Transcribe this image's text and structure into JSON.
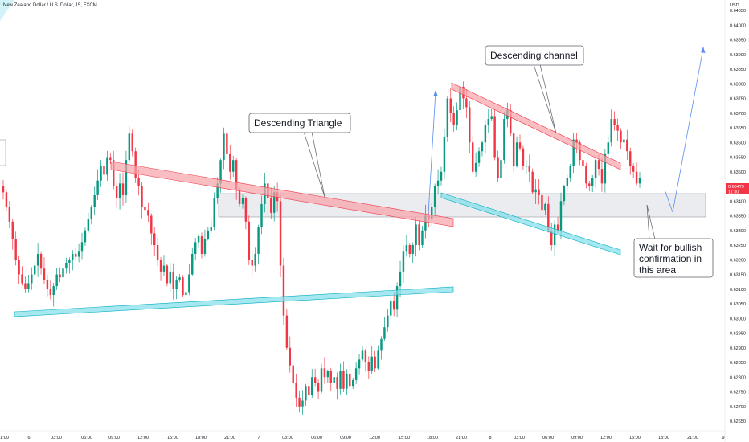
{
  "chart_data": {
    "type": "candlestick",
    "title": "New Zealand Dollar / U.S. Dollar, 15, FXCM",
    "currency": "USD",
    "last_price": "0.63479",
    "countdown": "11:30",
    "y_ticks": [
      "0.64050",
      "0.64000",
      "0.63950",
      "0.63900",
      "0.63850",
      "0.63800",
      "0.63750",
      "0.63700",
      "0.63650",
      "0.63600",
      "0.63550",
      "0.63500",
      "0.63450",
      "0.63400",
      "0.63350",
      "0.63300",
      "0.63250",
      "0.63200",
      "0.63150",
      "0.63100",
      "0.63050",
      "0.63000",
      "0.62950",
      "0.62900",
      "0.62850",
      "0.62800",
      "0.62750",
      "0.62700",
      "0.62650"
    ],
    "x_ticks": [
      "21:00",
      "6",
      "03:00",
      "06:00",
      "09:00",
      "12:00",
      "15:00",
      "18:00",
      "21:00",
      "7",
      "03:00",
      "06:00",
      "09:00",
      "12:00",
      "15:00",
      "18:00",
      "21:00",
      "8",
      "03:00",
      "06:00",
      "09:00",
      "12:00",
      "15:00",
      "18:00",
      "21:00",
      "9"
    ],
    "ylim": [
      0.6263,
      0.641
    ],
    "colors": {
      "up": "#089981",
      "down": "#f23645",
      "price_line": "#f23645"
    },
    "closes": [
      0.6343,
      0.6338,
      0.6333,
      0.6327,
      0.632,
      0.6315,
      0.6312,
      0.631,
      0.6312,
      0.6315,
      0.6318,
      0.6322,
      0.6317,
      0.6313,
      0.631,
      0.6308,
      0.6311,
      0.6315,
      0.6314,
      0.6317,
      0.6319,
      0.632,
      0.6322,
      0.6321,
      0.6323,
      0.6326,
      0.633,
      0.6334,
      0.6338,
      0.6342,
      0.6347,
      0.6352,
      0.6349,
      0.6355,
      0.6354,
      0.6345,
      0.6341,
      0.6346,
      0.6342,
      0.6354,
      0.6363,
      0.6357,
      0.6348,
      0.6345,
      0.6338,
      0.6337,
      0.6335,
      0.6329,
      0.6325,
      0.632,
      0.6316,
      0.6318,
      0.6312,
      0.6316,
      0.631,
      0.6313,
      0.6314,
      0.6308,
      0.6309,
      0.6315,
      0.6322,
      0.6326,
      0.6328,
      0.6322,
      0.6327,
      0.633,
      0.6331,
      0.6341,
      0.6346,
      0.6354,
      0.6363,
      0.6356,
      0.635,
      0.6354,
      0.6344,
      0.6339,
      0.6341,
      0.6333,
      0.632,
      0.6318,
      0.6322,
      0.6331,
      0.6339,
      0.6346,
      0.6341,
      0.6336,
      0.6343,
      0.634,
      0.6318,
      0.6301,
      0.629,
      0.6284,
      0.6278,
      0.6273,
      0.627,
      0.6272,
      0.6277,
      0.6274,
      0.628,
      0.6278,
      0.6275,
      0.6283,
      0.628,
      0.6282,
      0.6278,
      0.628,
      0.6276,
      0.6282,
      0.6276,
      0.6281,
      0.6277,
      0.6279,
      0.6283,
      0.6286,
      0.6289,
      0.6285,
      0.6282,
      0.6287,
      0.6283,
      0.6289,
      0.6293,
      0.6297,
      0.6301,
      0.6306,
      0.6303,
      0.6311,
      0.6316,
      0.6323,
      0.6325,
      0.6322,
      0.6325,
      0.6332,
      0.6325,
      0.633,
      0.6335,
      0.6334,
      0.6338,
      0.6345,
      0.6347,
      0.635,
      0.6362,
      0.6375,
      0.637,
      0.6366,
      0.6371,
      0.6379,
      0.6375,
      0.6372,
      0.636,
      0.635,
      0.6353,
      0.6357,
      0.636,
      0.6366,
      0.6368,
      0.6369,
      0.6355,
      0.6348,
      0.6354,
      0.6368,
      0.6371,
      0.6363,
      0.6352,
      0.636,
      0.6358,
      0.6352,
      0.6352,
      0.635,
      0.6343,
      0.6344,
      0.6342,
      0.6337,
      0.6339,
      0.633,
      0.6325,
      0.6332,
      0.633,
      0.634,
      0.6345,
      0.6348,
      0.6352,
      0.6361,
      0.636,
      0.6354,
      0.6352,
      0.6346,
      0.6345,
      0.6348,
      0.6354,
      0.6351,
      0.6346,
      0.6356,
      0.636,
      0.6368,
      0.6366,
      0.6364,
      0.636,
      0.6361,
      0.6357,
      0.6352,
      0.635,
      0.6346,
      0.6348
    ]
  },
  "annotations": {
    "triangle_label": "Descending Triangle",
    "channel_label": "Descending channel",
    "note_line1": "Wait for bullish",
    "note_line2": "confirmation in",
    "note_line3": "this area"
  }
}
